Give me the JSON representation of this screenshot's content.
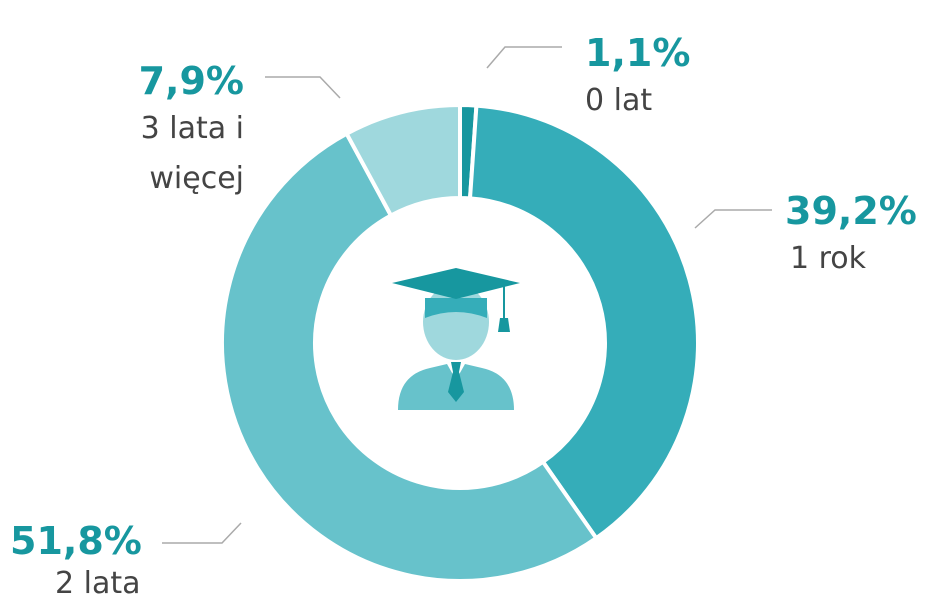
{
  "chart_data": {
    "type": "pie",
    "categories": [
      "0 lat",
      "1 rok",
      "2 lata",
      "3 lata i więcej"
    ],
    "values": [
      1.1,
      39.2,
      51.8,
      7.9
    ],
    "value_labels": [
      "1,1%",
      "39,2%",
      "51,8%",
      "7,9%"
    ],
    "colors": [
      "#17979f",
      "#35adb9",
      "#67c2cb",
      "#9fd8dd"
    ],
    "donut": true
  }
}
